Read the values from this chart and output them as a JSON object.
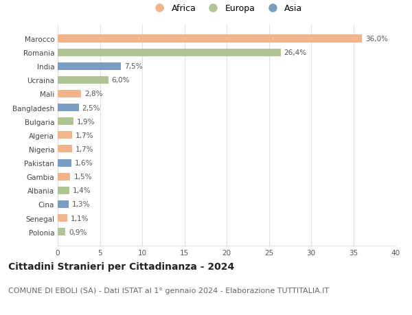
{
  "countries": [
    "Polonia",
    "Senegal",
    "Cina",
    "Albania",
    "Gambia",
    "Pakistan",
    "Nigeria",
    "Algeria",
    "Bulgaria",
    "Bangladesh",
    "Mali",
    "Ucraina",
    "India",
    "Romania",
    "Marocco"
  ],
  "values": [
    0.9,
    1.1,
    1.3,
    1.4,
    1.5,
    1.6,
    1.7,
    1.7,
    1.9,
    2.5,
    2.8,
    6.0,
    7.5,
    26.4,
    36.0
  ],
  "labels": [
    "0,9%",
    "1,1%",
    "1,3%",
    "1,4%",
    "1,5%",
    "1,6%",
    "1,7%",
    "1,7%",
    "1,9%",
    "2,5%",
    "2,8%",
    "6,0%",
    "7,5%",
    "26,4%",
    "36,0%"
  ],
  "continents": [
    "Europa",
    "Africa",
    "Asia",
    "Europa",
    "Africa",
    "Asia",
    "Africa",
    "Africa",
    "Europa",
    "Asia",
    "Africa",
    "Europa",
    "Asia",
    "Europa",
    "Africa"
  ],
  "colors": {
    "Africa": "#F2B48A",
    "Europa": "#B0C494",
    "Asia": "#7A9DC4"
  },
  "legend_order": [
    "Africa",
    "Europa",
    "Asia"
  ],
  "title": "Cittadini Stranieri per Cittadinanza - 2024",
  "subtitle": "COMUNE DI EBOLI (SA) - Dati ISTAT al 1° gennaio 2024 - Elaborazione TUTTITALIA.IT",
  "xlim": [
    0,
    40
  ],
  "xticks": [
    0,
    5,
    10,
    15,
    20,
    25,
    30,
    35,
    40
  ],
  "background_color": "#ffffff",
  "grid_color": "#e0e0e0",
  "bar_height": 0.55,
  "title_fontsize": 10,
  "subtitle_fontsize": 8,
  "label_fontsize": 7.5,
  "tick_fontsize": 7.5,
  "legend_fontsize": 9
}
